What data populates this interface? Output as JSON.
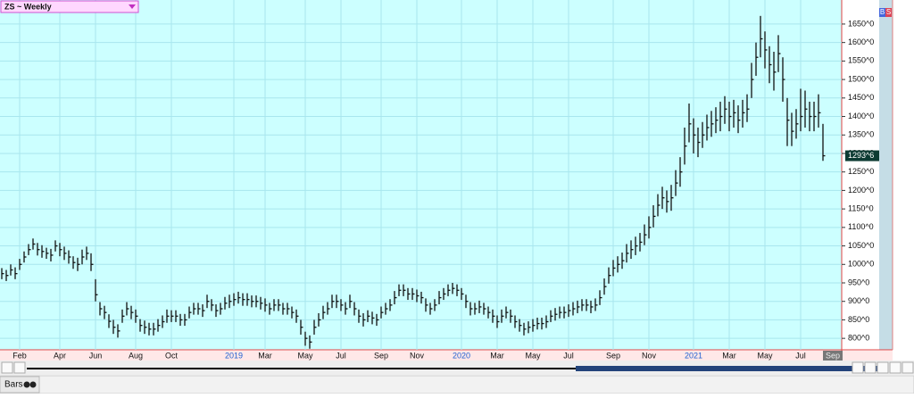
{
  "symbol": "ZS ~ Weekly",
  "buttons": [
    "B",
    "S"
  ],
  "status": "Bars",
  "chart_data": {
    "type": "ohlc",
    "color": "#111111",
    "grid": true,
    "categories": [
      null,
      null,
      null,
      null,
      "Feb",
      null,
      null,
      null,
      null,
      null,
      null,
      null,
      null,
      "Apr",
      null,
      null,
      null,
      null,
      null,
      null,
      null,
      "Jun",
      null,
      null,
      null,
      null,
      null,
      null,
      null,
      null,
      "Aug",
      null,
      null,
      null,
      null,
      null,
      null,
      null,
      "Oct",
      null,
      null,
      null,
      null,
      null,
      null,
      null,
      null,
      null,
      null,
      null,
      null,
      null,
      "2019",
      null,
      null,
      null,
      null,
      null,
      null,
      "Mar",
      null,
      null,
      null,
      null,
      null,
      null,
      null,
      null,
      "May",
      null,
      null,
      null,
      null,
      null,
      null,
      null,
      "Jul",
      null,
      null,
      null,
      null,
      null,
      null,
      null,
      null,
      "Sep",
      null,
      null,
      null,
      null,
      null,
      null,
      null,
      "Nov",
      null,
      null,
      null,
      null,
      null,
      null,
      null,
      null,
      null,
      "2020",
      null,
      null,
      null,
      null,
      null,
      null,
      null,
      "Mar",
      null,
      null,
      null,
      null,
      null,
      null,
      null,
      "May",
      null,
      null,
      null,
      null,
      null,
      null,
      null,
      "Jul",
      null,
      null,
      null,
      null,
      null,
      null,
      null,
      null,
      null,
      "Sep",
      null,
      null,
      null,
      null,
      null,
      null,
      null,
      "Nov",
      null,
      null,
      null,
      null,
      null,
      null,
      null,
      null,
      null,
      "2021",
      null,
      null,
      null,
      null,
      null,
      null,
      null,
      "Mar",
      null,
      null,
      null,
      null,
      null,
      null,
      null,
      "May",
      null,
      null,
      null,
      null,
      null,
      null,
      null,
      "Jul",
      null,
      null,
      null,
      null,
      null
    ],
    "high": [
      990,
      985,
      1000,
      992,
      1015,
      1035,
      1055,
      1070,
      1058,
      1052,
      1045,
      1042,
      1065,
      1058,
      1048,
      1038,
      1022,
      1018,
      1040,
      1048,
      1030,
      960,
      898,
      888,
      865,
      850,
      838,
      878,
      898,
      888,
      878,
      852,
      848,
      842,
      842,
      852,
      862,
      878,
      876,
      876,
      866,
      866,
      886,
      896,
      896,
      892,
      918,
      906,
      892,
      896,
      912,
      918,
      922,
      926,
      922,
      922,
      916,
      916,
      912,
      908,
      896,
      906,
      906,
      896,
      896,
      886,
      878,
      850,
      818,
      808,
      850,
      868,
      888,
      898,
      918,
      918,
      906,
      898,
      918,
      898,
      878,
      868,
      876,
      872,
      866,
      886,
      896,
      906,
      928,
      946,
      946,
      936,
      936,
      932,
      926,
      908,
      896,
      906,
      928,
      936,
      946,
      950,
      946,
      936,
      918,
      898,
      896,
      902,
      896,
      886,
      878,
      862,
      878,
      886,
      878,
      862,
      852,
      842,
      846,
      852,
      856,
      856,
      862,
      876,
      882,
      886,
      886,
      892,
      898,
      902,
      906,
      906,
      902,
      908,
      930,
      962,
      992,
      1012,
      1022,
      1032,
      1055,
      1065,
      1075,
      1085,
      1108,
      1130,
      1160,
      1190,
      1210,
      1200,
      1215,
      1255,
      1290,
      1370,
      1435,
      1395,
      1370,
      1385,
      1405,
      1415,
      1425,
      1440,
      1455,
      1440,
      1445,
      1430,
      1445,
      1460,
      1545,
      1600,
      1672,
      1630,
      1590,
      1575,
      1620,
      1560,
      1450,
      1410,
      1420,
      1475,
      1470,
      1440,
      1440,
      1460,
      1380
    ],
    "low": [
      960,
      955,
      970,
      960,
      985,
      1005,
      1025,
      1040,
      1024,
      1018,
      1015,
      1008,
      1035,
      1022,
      1012,
      1002,
      988,
      982,
      1000,
      1012,
      982,
      900,
      862,
      852,
      828,
      812,
      802,
      842,
      862,
      852,
      842,
      818,
      812,
      808,
      808,
      818,
      828,
      842,
      844,
      844,
      834,
      834,
      854,
      864,
      864,
      858,
      882,
      874,
      858,
      864,
      878,
      882,
      888,
      894,
      888,
      888,
      884,
      884,
      878,
      872,
      864,
      874,
      874,
      864,
      864,
      854,
      842,
      810,
      780,
      772,
      810,
      832,
      852,
      864,
      882,
      882,
      874,
      864,
      882,
      862,
      842,
      832,
      844,
      838,
      834,
      854,
      864,
      874,
      892,
      914,
      914,
      904,
      904,
      898,
      894,
      872,
      864,
      874,
      892,
      904,
      914,
      920,
      914,
      904,
      882,
      862,
      864,
      868,
      864,
      854,
      842,
      828,
      842,
      854,
      842,
      828,
      818,
      808,
      814,
      818,
      824,
      824,
      828,
      844,
      848,
      854,
      854,
      858,
      862,
      868,
      874,
      874,
      868,
      874,
      890,
      918,
      948,
      968,
      978,
      988,
      1005,
      1015,
      1025,
      1035,
      1052,
      1070,
      1100,
      1130,
      1150,
      1140,
      1145,
      1185,
      1210,
      1270,
      1330,
      1300,
      1290,
      1315,
      1335,
      1345,
      1355,
      1360,
      1380,
      1360,
      1370,
      1355,
      1370,
      1385,
      1450,
      1510,
      1560,
      1530,
      1490,
      1470,
      1520,
      1440,
      1320,
      1320,
      1340,
      1360,
      1370,
      1360,
      1360,
      1370,
      1280
    ],
    "close": [
      975,
      970,
      985,
      975,
      1000,
      1020,
      1040,
      1055,
      1040,
      1035,
      1030,
      1025,
      1050,
      1040,
      1030,
      1020,
      1005,
      1000,
      1020,
      1030,
      1000,
      918,
      880,
      870,
      846,
      830,
      820,
      860,
      880,
      870,
      860,
      835,
      830,
      825,
      825,
      835,
      845,
      860,
      860,
      860,
      850,
      850,
      870,
      880,
      880,
      875,
      900,
      890,
      875,
      880,
      895,
      900,
      905,
      910,
      905,
      905,
      900,
      900,
      895,
      890,
      880,
      890,
      890,
      880,
      880,
      870,
      860,
      830,
      800,
      790,
      830,
      850,
      870,
      880,
      900,
      900,
      890,
      880,
      900,
      880,
      860,
      850,
      860,
      855,
      850,
      870,
      880,
      890,
      910,
      930,
      930,
      920,
      920,
      915,
      910,
      890,
      880,
      890,
      910,
      920,
      930,
      935,
      930,
      920,
      900,
      880,
      880,
      885,
      880,
      870,
      860,
      845,
      860,
      870,
      860,
      845,
      835,
      825,
      830,
      835,
      840,
      840,
      845,
      860,
      865,
      870,
      870,
      875,
      880,
      885,
      890,
      890,
      885,
      890,
      910,
      940,
      970,
      990,
      1000,
      1010,
      1030,
      1040,
      1050,
      1060,
      1080,
      1100,
      1130,
      1160,
      1180,
      1170,
      1180,
      1220,
      1250,
      1320,
      1380,
      1350,
      1330,
      1350,
      1370,
      1380,
      1390,
      1400,
      1420,
      1400,
      1410,
      1390,
      1410,
      1420,
      1500,
      1560,
      1610,
      1580,
      1540,
      1520,
      1570,
      1500,
      1390,
      1360,
      1380,
      1400,
      1420,
      1400,
      1400,
      1410,
      1293.75
    ],
    "ylim": [
      769,
      1715
    ],
    "yticks": [
      {
        "value": 800,
        "label": "800^0"
      },
      {
        "value": 850,
        "label": "850^0"
      },
      {
        "value": 900,
        "label": "900^0"
      },
      {
        "value": 950,
        "label": "950^0"
      },
      {
        "value": 1000,
        "label": "1000^0"
      },
      {
        "value": 1050,
        "label": "1050^0"
      },
      {
        "value": 1100,
        "label": "1100^0"
      },
      {
        "value": 1150,
        "label": "1150^0"
      },
      {
        "value": 1200,
        "label": "1200^0"
      },
      {
        "value": 1250,
        "label": "1250^0"
      },
      {
        "value": 1300,
        "label": "1300^0"
      },
      {
        "value": 1350,
        "label": "1350^0"
      },
      {
        "value": 1400,
        "label": "1400^0"
      },
      {
        "value": 1450,
        "label": "1450^0"
      },
      {
        "value": 1500,
        "label": "1500^0"
      },
      {
        "value": 1550,
        "label": "1550^0"
      },
      {
        "value": 1600,
        "label": "1600^0"
      },
      {
        "value": 1650,
        "label": "1650^0"
      }
    ],
    "last_price": {
      "value": 1293.75,
      "label": "1293^6"
    },
    "current_period_label": "Sep"
  }
}
